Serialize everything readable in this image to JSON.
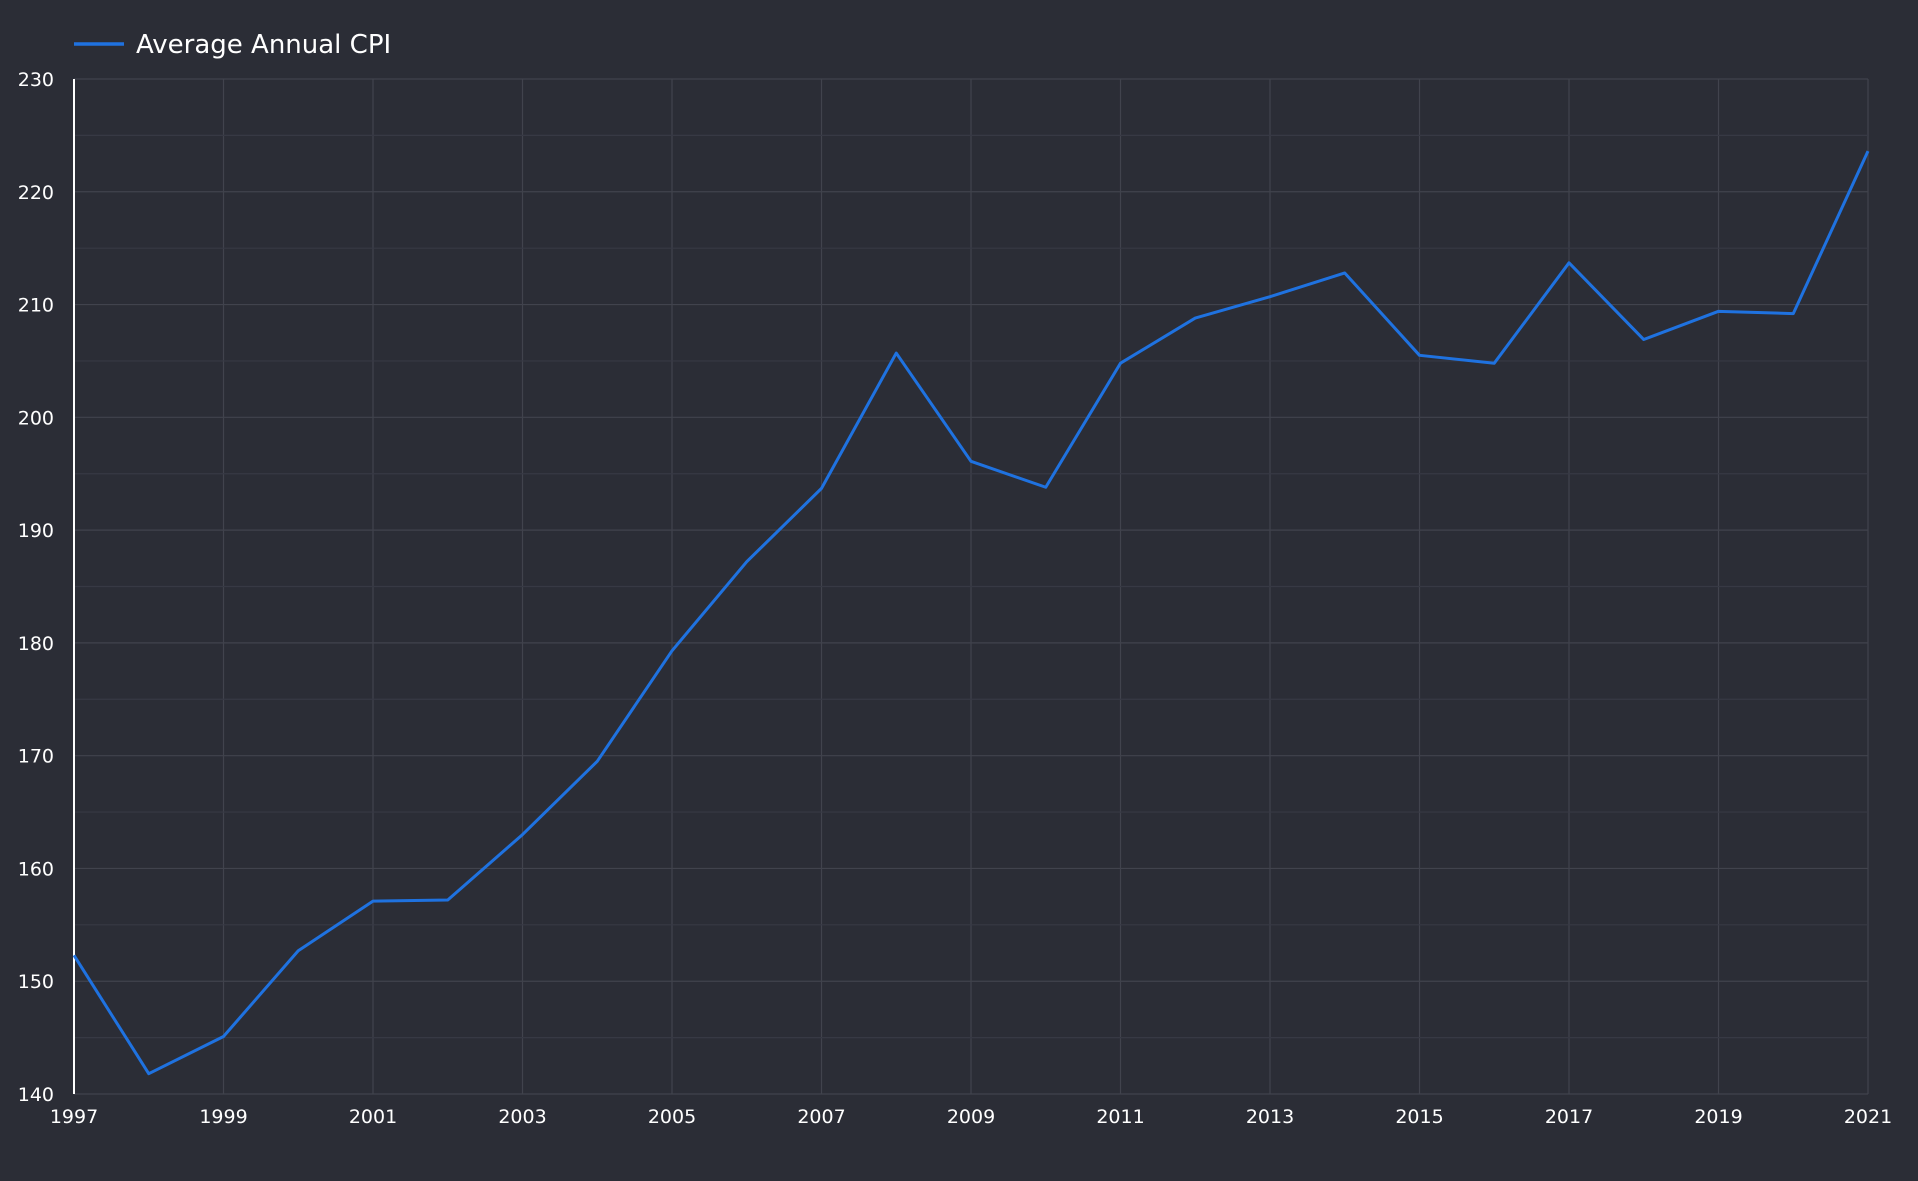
{
  "colors": {
    "background": "#2b2d36",
    "series_line": "#1f72e0",
    "axis": "#ffffff",
    "text": "#ffffff",
    "grid": "#41434d"
  },
  "chart_data": {
    "type": "line",
    "title": "",
    "xlabel": "",
    "ylabel": "",
    "xlim": [
      1997,
      2021
    ],
    "ylim": [
      140,
      230
    ],
    "grid": true,
    "legend_placement": "top-left",
    "x_ticks": [
      "1997",
      "1999",
      "2001",
      "2003",
      "2005",
      "2007",
      "2009",
      "2011",
      "2013",
      "2015",
      "2017",
      "2019",
      "2021"
    ],
    "y_ticks": [
      "140",
      "150",
      "160",
      "170",
      "180",
      "190",
      "200",
      "210",
      "220",
      "230"
    ],
    "x": [
      1997,
      1998,
      1999,
      2000,
      2001,
      2002,
      2003,
      2004,
      2005,
      2006,
      2007,
      2008,
      2009,
      2010,
      2011,
      2012,
      2013,
      2014,
      2015,
      2016,
      2017,
      2018,
      2019,
      2020,
      2021
    ],
    "series": [
      {
        "name": "Average Annual CPI",
        "color": "#1f72e0",
        "values": [
          152.3,
          141.8,
          145.1,
          152.7,
          157.1,
          157.2,
          163.0,
          169.5,
          179.3,
          187.2,
          193.7,
          205.7,
          196.1,
          193.8,
          204.8,
          208.8,
          210.7,
          212.8,
          205.5,
          204.8,
          213.7,
          206.9,
          209.4,
          209.2,
          223.6
        ]
      }
    ]
  }
}
